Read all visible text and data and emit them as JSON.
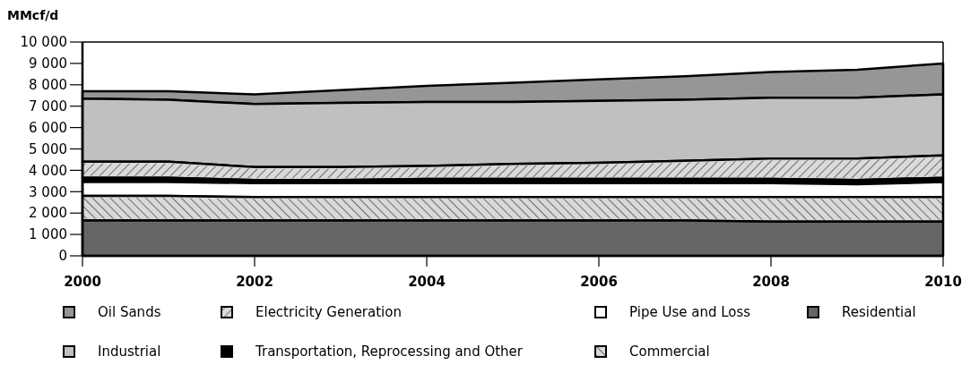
{
  "chart_data": {
    "type": "area",
    "stacked": true,
    "ylabel": "MMcf/d",
    "x": [
      2000,
      2001,
      2002,
      2003,
      2004,
      2005,
      2006,
      2007,
      2008,
      2009,
      2010
    ],
    "xlim": [
      2000,
      2010
    ],
    "xticks": [
      2000,
      2002,
      2004,
      2006,
      2008,
      2010
    ],
    "ylim": [
      0,
      10000
    ],
    "yticks": [
      {
        "value": 0,
        "label": "0"
      },
      {
        "value": 1000,
        "label": "1 000"
      },
      {
        "value": 2000,
        "label": "2 000"
      },
      {
        "value": 3000,
        "label": "3 000"
      },
      {
        "value": 4000,
        "label": "4 000"
      },
      {
        "value": 5000,
        "label": "5 000"
      },
      {
        "value": 6000,
        "label": "6 000"
      },
      {
        "value": 7000,
        "label": "7 000"
      },
      {
        "value": 8000,
        "label": "8 000"
      },
      {
        "value": 9000,
        "label": "9 000"
      },
      {
        "value": 10000,
        "label": "10 000"
      }
    ],
    "grid": false,
    "legend": "bottom",
    "series": [
      {
        "name": "Residential",
        "color": "#666666",
        "values": [
          1650,
          1650,
          1650,
          1650,
          1650,
          1650,
          1650,
          1650,
          1600,
          1600,
          1600
        ]
      },
      {
        "name": "Commercial",
        "color": "#d9d9d9",
        "values": [
          1150,
          1150,
          1100,
          1100,
          1100,
          1100,
          1100,
          1100,
          1150,
          1150,
          1150
        ]
      },
      {
        "name": "Pipe Use and Loss",
        "color": "#ffffff",
        "values": [
          650,
          650,
          650,
          650,
          650,
          650,
          650,
          650,
          650,
          600,
          700
        ]
      },
      {
        "name": "Transportation, Reprocessing and Other",
        "color": "#000000",
        "values": [
          200,
          200,
          150,
          150,
          200,
          200,
          200,
          200,
          200,
          200,
          200
        ]
      },
      {
        "name": "Electricity Generation",
        "color": "#dadada",
        "values": [
          750,
          750,
          600,
          600,
          600,
          700,
          750,
          850,
          950,
          1000,
          1050
        ]
      },
      {
        "name": "Industrial",
        "color": "#c0c0c0",
        "values": [
          2950,
          2900,
          2950,
          3000,
          3000,
          2900,
          2900,
          2850,
          2850,
          2850,
          2850
        ]
      },
      {
        "name": "Oil Sands",
        "color": "#969696",
        "values": [
          350,
          400,
          450,
          600,
          750,
          900,
          1000,
          1100,
          1200,
          1300,
          1450
        ]
      }
    ]
  }
}
